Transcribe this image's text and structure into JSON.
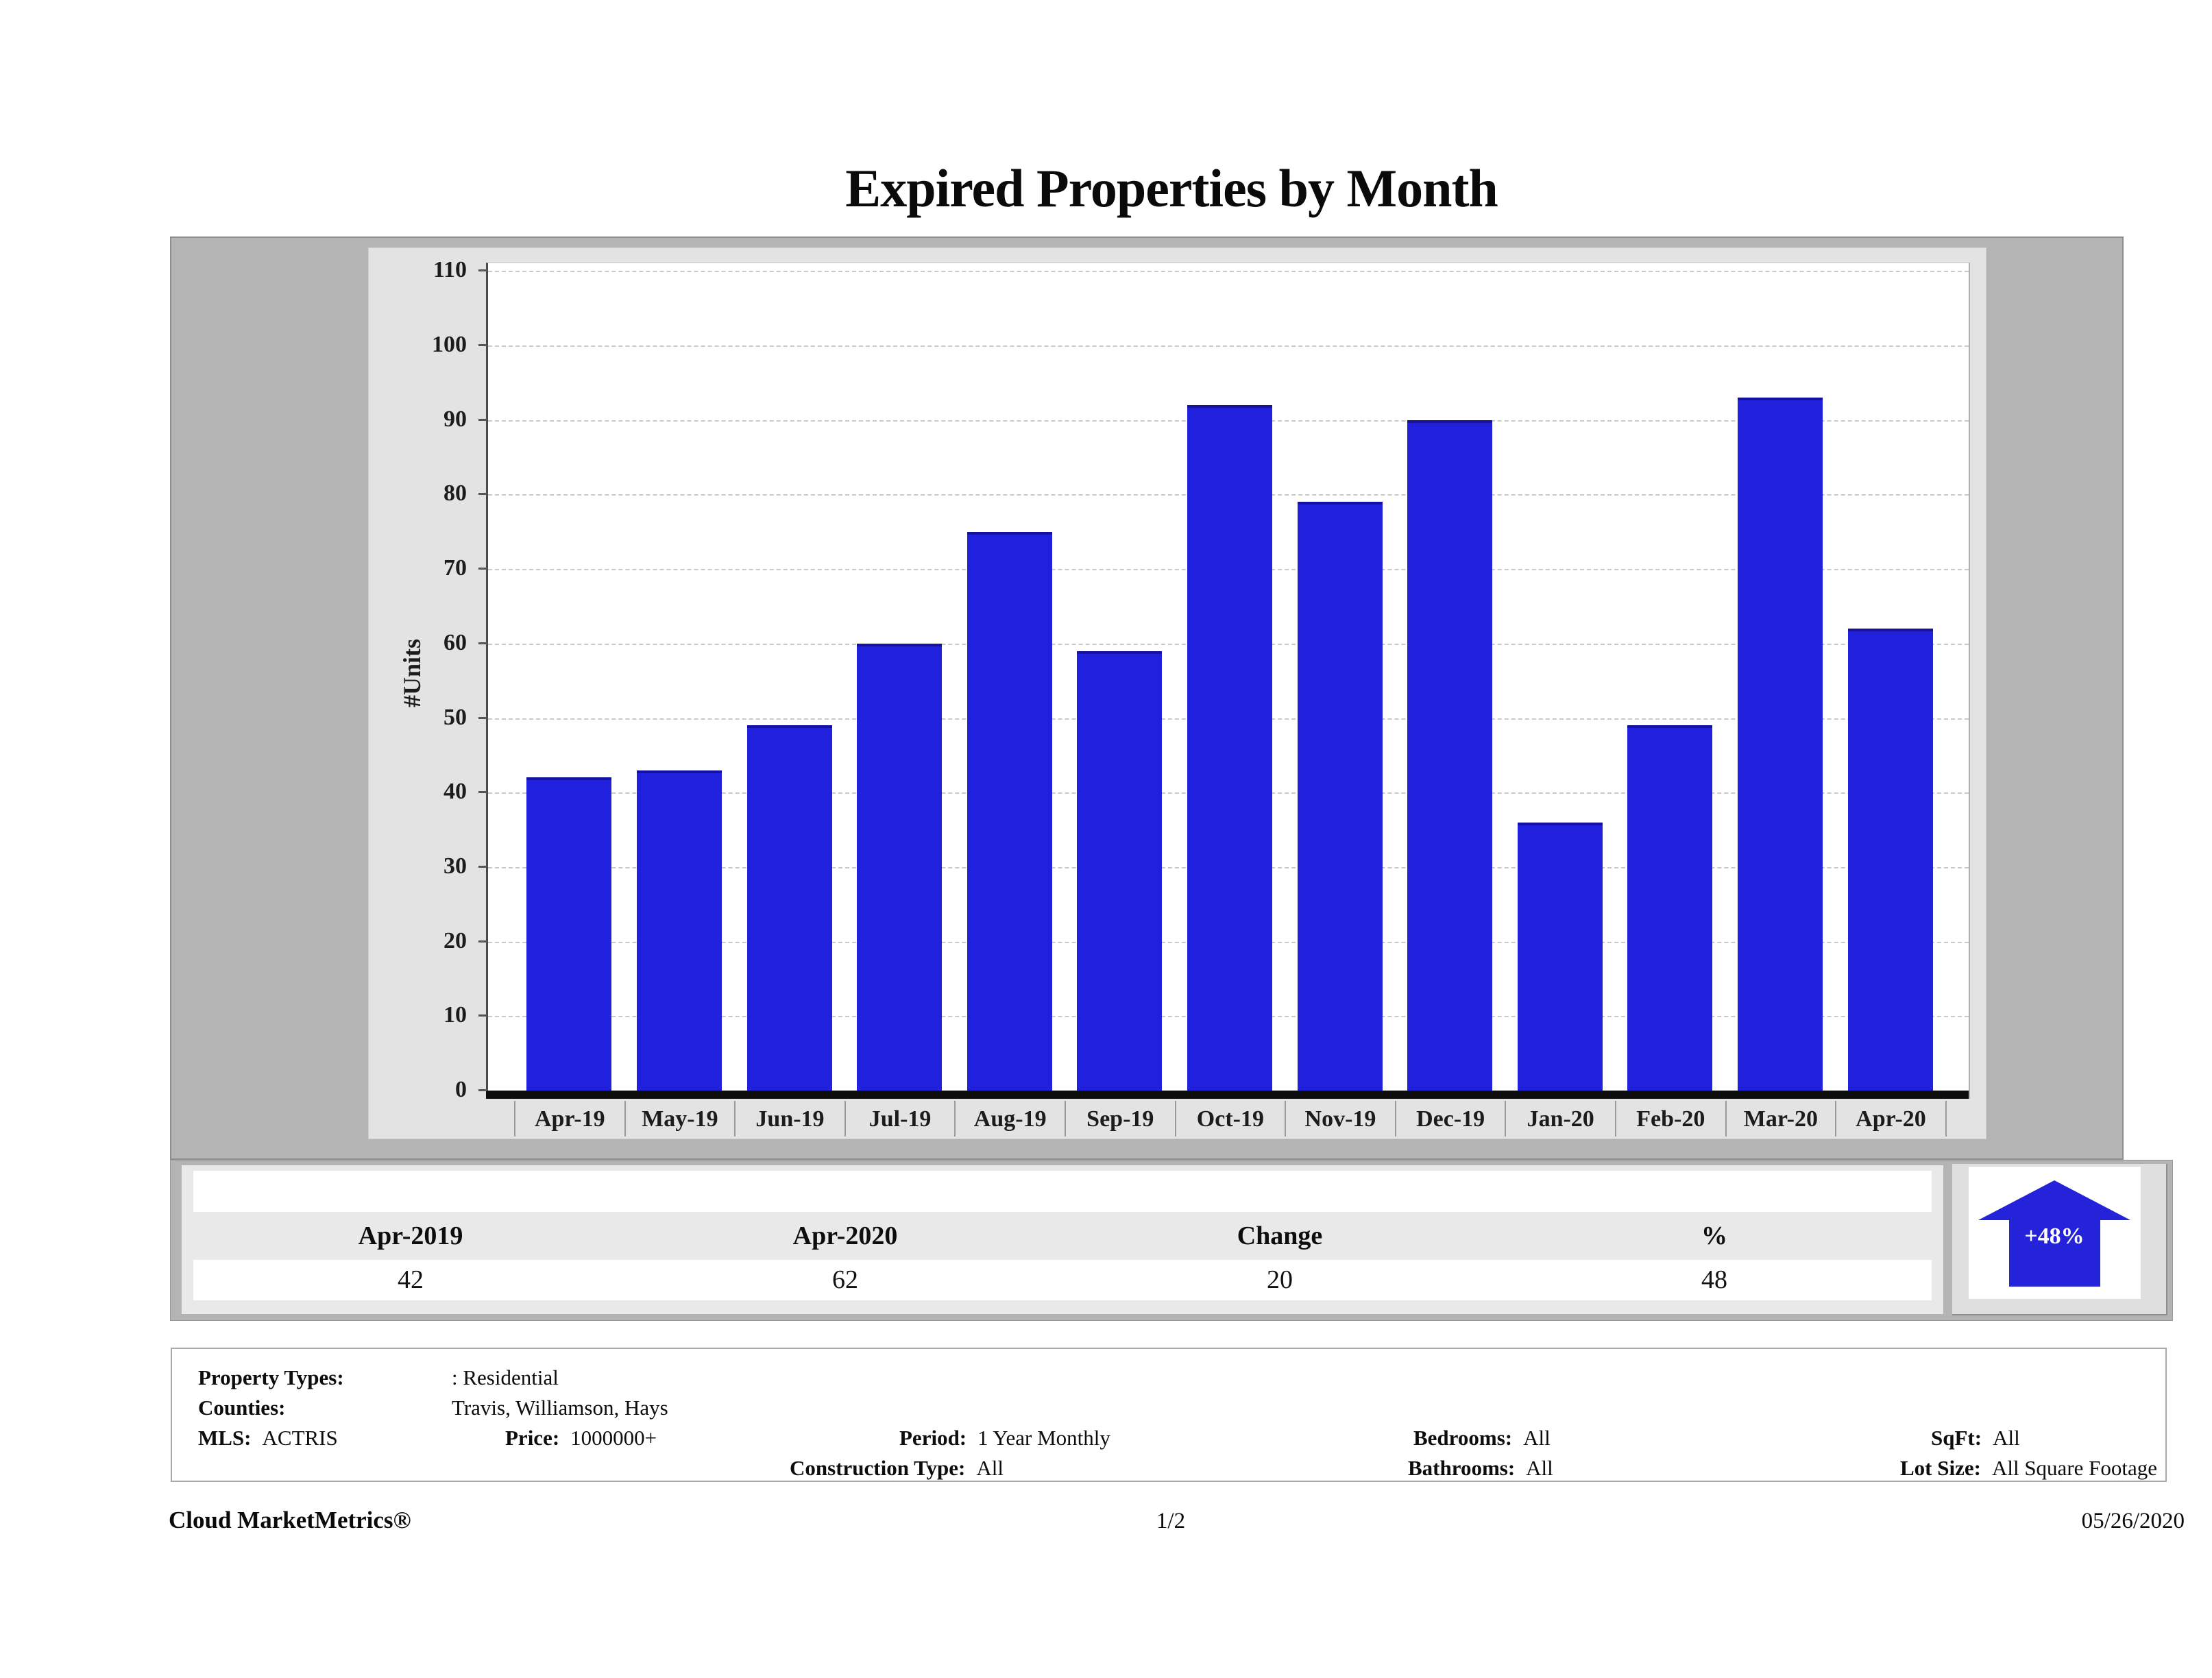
{
  "chart_data": {
    "type": "bar",
    "title": "Expired Properties by Month",
    "categories": [
      "Apr-19",
      "May-19",
      "Jun-19",
      "Jul-19",
      "Aug-19",
      "Sep-19",
      "Oct-19",
      "Nov-19",
      "Dec-19",
      "Jan-20",
      "Feb-20",
      "Mar-20",
      "Apr-20"
    ],
    "values": [
      42,
      43,
      49,
      60,
      75,
      59,
      92,
      79,
      90,
      36,
      49,
      93,
      62
    ],
    "xlabel": "",
    "ylabel": "#Units",
    "ylim": [
      0,
      110
    ],
    "ytick_step": 10,
    "grid": "horizontal-dashed",
    "legend": "none",
    "bar_color": "#2120dc",
    "bar_top_edge_color": "#1512a0"
  },
  "summary_table": {
    "headers": [
      "Apr-2019",
      "Apr-2020",
      "Change",
      "%"
    ],
    "values": [
      "42",
      "62",
      "20",
      "48"
    ]
  },
  "change_badge": {
    "label": "+48%",
    "direction": "up",
    "color": "#2423d9"
  },
  "filters": {
    "property_types_label": "Property Types:",
    "property_types_value": ": Residential",
    "counties_label": "Counties:",
    "counties_value": "Travis, Williamson, Hays",
    "mls_label": "MLS:",
    "mls_value": "ACTRIS",
    "price_label": "Price:",
    "price_value": "1000000+",
    "period_label": "Period:",
    "period_value": "1 Year Monthly",
    "construction_label": "Construction Type:",
    "construction_value": "All",
    "bedrooms_label": "Bedrooms:",
    "bedrooms_value": "All",
    "bathrooms_label": "Bathrooms:",
    "bathrooms_value": "All",
    "sqft_label": "SqFt:",
    "sqft_value": "All",
    "lotsize_label": "Lot Size:",
    "lotsize_value": "All Square Footage"
  },
  "footer": {
    "brand": "Cloud MarketMetrics®",
    "page": "1/2",
    "date": "05/26/2020"
  }
}
